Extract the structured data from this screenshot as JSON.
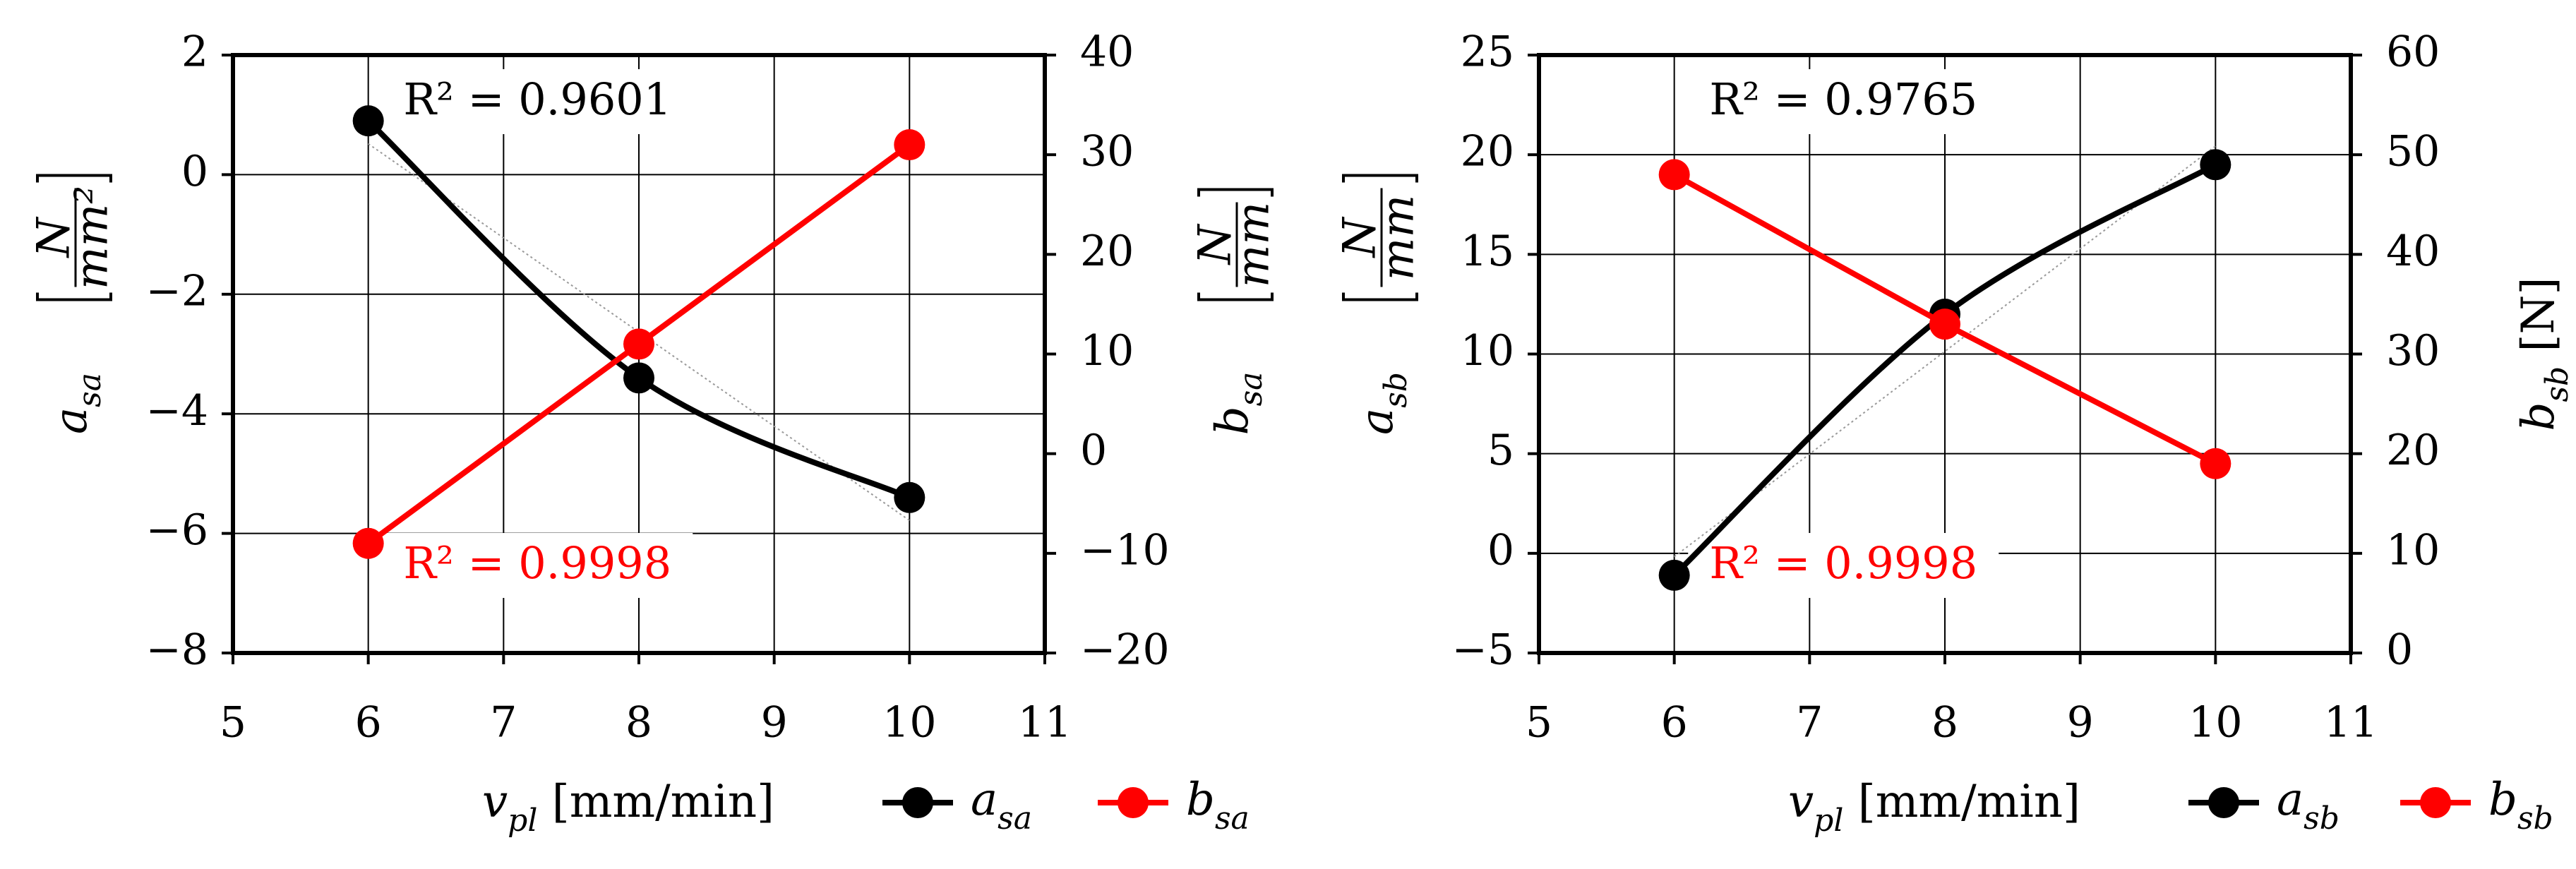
{
  "colors": {
    "black_series": "#000000",
    "red_series": "#ff0000",
    "grid": "#000000",
    "trend": "#9a9a9a"
  },
  "chart_data": [
    {
      "type": "line",
      "x": [
        6,
        8,
        10
      ],
      "xlim": [
        5,
        11
      ],
      "x_ticks": [
        "5",
        "6",
        "7",
        "8",
        "9",
        "10",
        "11"
      ],
      "xlabel": {
        "var": "v",
        "sub": "pl",
        "unit": " [mm/min]"
      },
      "ylim_left": [
        -8,
        2
      ],
      "left_ticks": [
        "−8",
        "−6",
        "−4",
        "−2",
        "0",
        "2"
      ],
      "ylim_right": [
        -20,
        40
      ],
      "right_ticks": [
        "−20",
        "−10",
        "0",
        "10",
        "20",
        "30",
        "40"
      ],
      "ylabel_left": {
        "var": "a",
        "sub": "sa",
        "unit_num": "N",
        "unit_den": "mm²"
      },
      "ylabel_right": {
        "var": "b",
        "sub": "sa",
        "unit_num": "N",
        "unit_den": "mm"
      },
      "grid": true,
      "series": [
        {
          "name": "a_sa",
          "label_var": "a",
          "label_sub": "sa",
          "color": "#000000",
          "axis": "left",
          "values": [
            0.9,
            -3.4,
            -5.4
          ],
          "r2": "R² = 0.9601"
        },
        {
          "name": "b_sa",
          "label_var": "b",
          "label_sub": "sa",
          "color": "#ff0000",
          "axis": "right",
          "values": [
            -9.0,
            11.0,
            31.0
          ],
          "r2": "R² = 0.9998"
        }
      ]
    },
    {
      "type": "line",
      "x": [
        6,
        8,
        10
      ],
      "xlim": [
        5,
        11
      ],
      "x_ticks": [
        "5",
        "6",
        "7",
        "8",
        "9",
        "10",
        "11"
      ],
      "xlabel": {
        "var": "v",
        "sub": "pl",
        "unit": " [mm/min]"
      },
      "ylim_left": [
        -5,
        25
      ],
      "left_ticks": [
        "−5",
        "0",
        "5",
        "10",
        "15",
        "20",
        "25"
      ],
      "ylim_right": [
        0,
        60
      ],
      "right_ticks": [
        "0",
        "10",
        "20",
        "30",
        "40",
        "50",
        "60"
      ],
      "ylabel_left": {
        "var": "a",
        "sub": "sb",
        "unit_num": "N",
        "unit_den": "mm"
      },
      "ylabel_right": {
        "var": "b",
        "sub": "sb",
        "unit": " [N]"
      },
      "grid": true,
      "series": [
        {
          "name": "a_sb",
          "label_var": "a",
          "label_sub": "sb",
          "color": "#000000",
          "axis": "left",
          "values": [
            -1.1,
            12.0,
            19.5
          ],
          "r2": "R² = 0.9765"
        },
        {
          "name": "b_sb",
          "label_var": "b",
          "label_sub": "sb",
          "color": "#ff0000",
          "axis": "right",
          "values": [
            48.0,
            33.0,
            19.0
          ],
          "r2": "R² = 0.9998"
        }
      ]
    }
  ]
}
